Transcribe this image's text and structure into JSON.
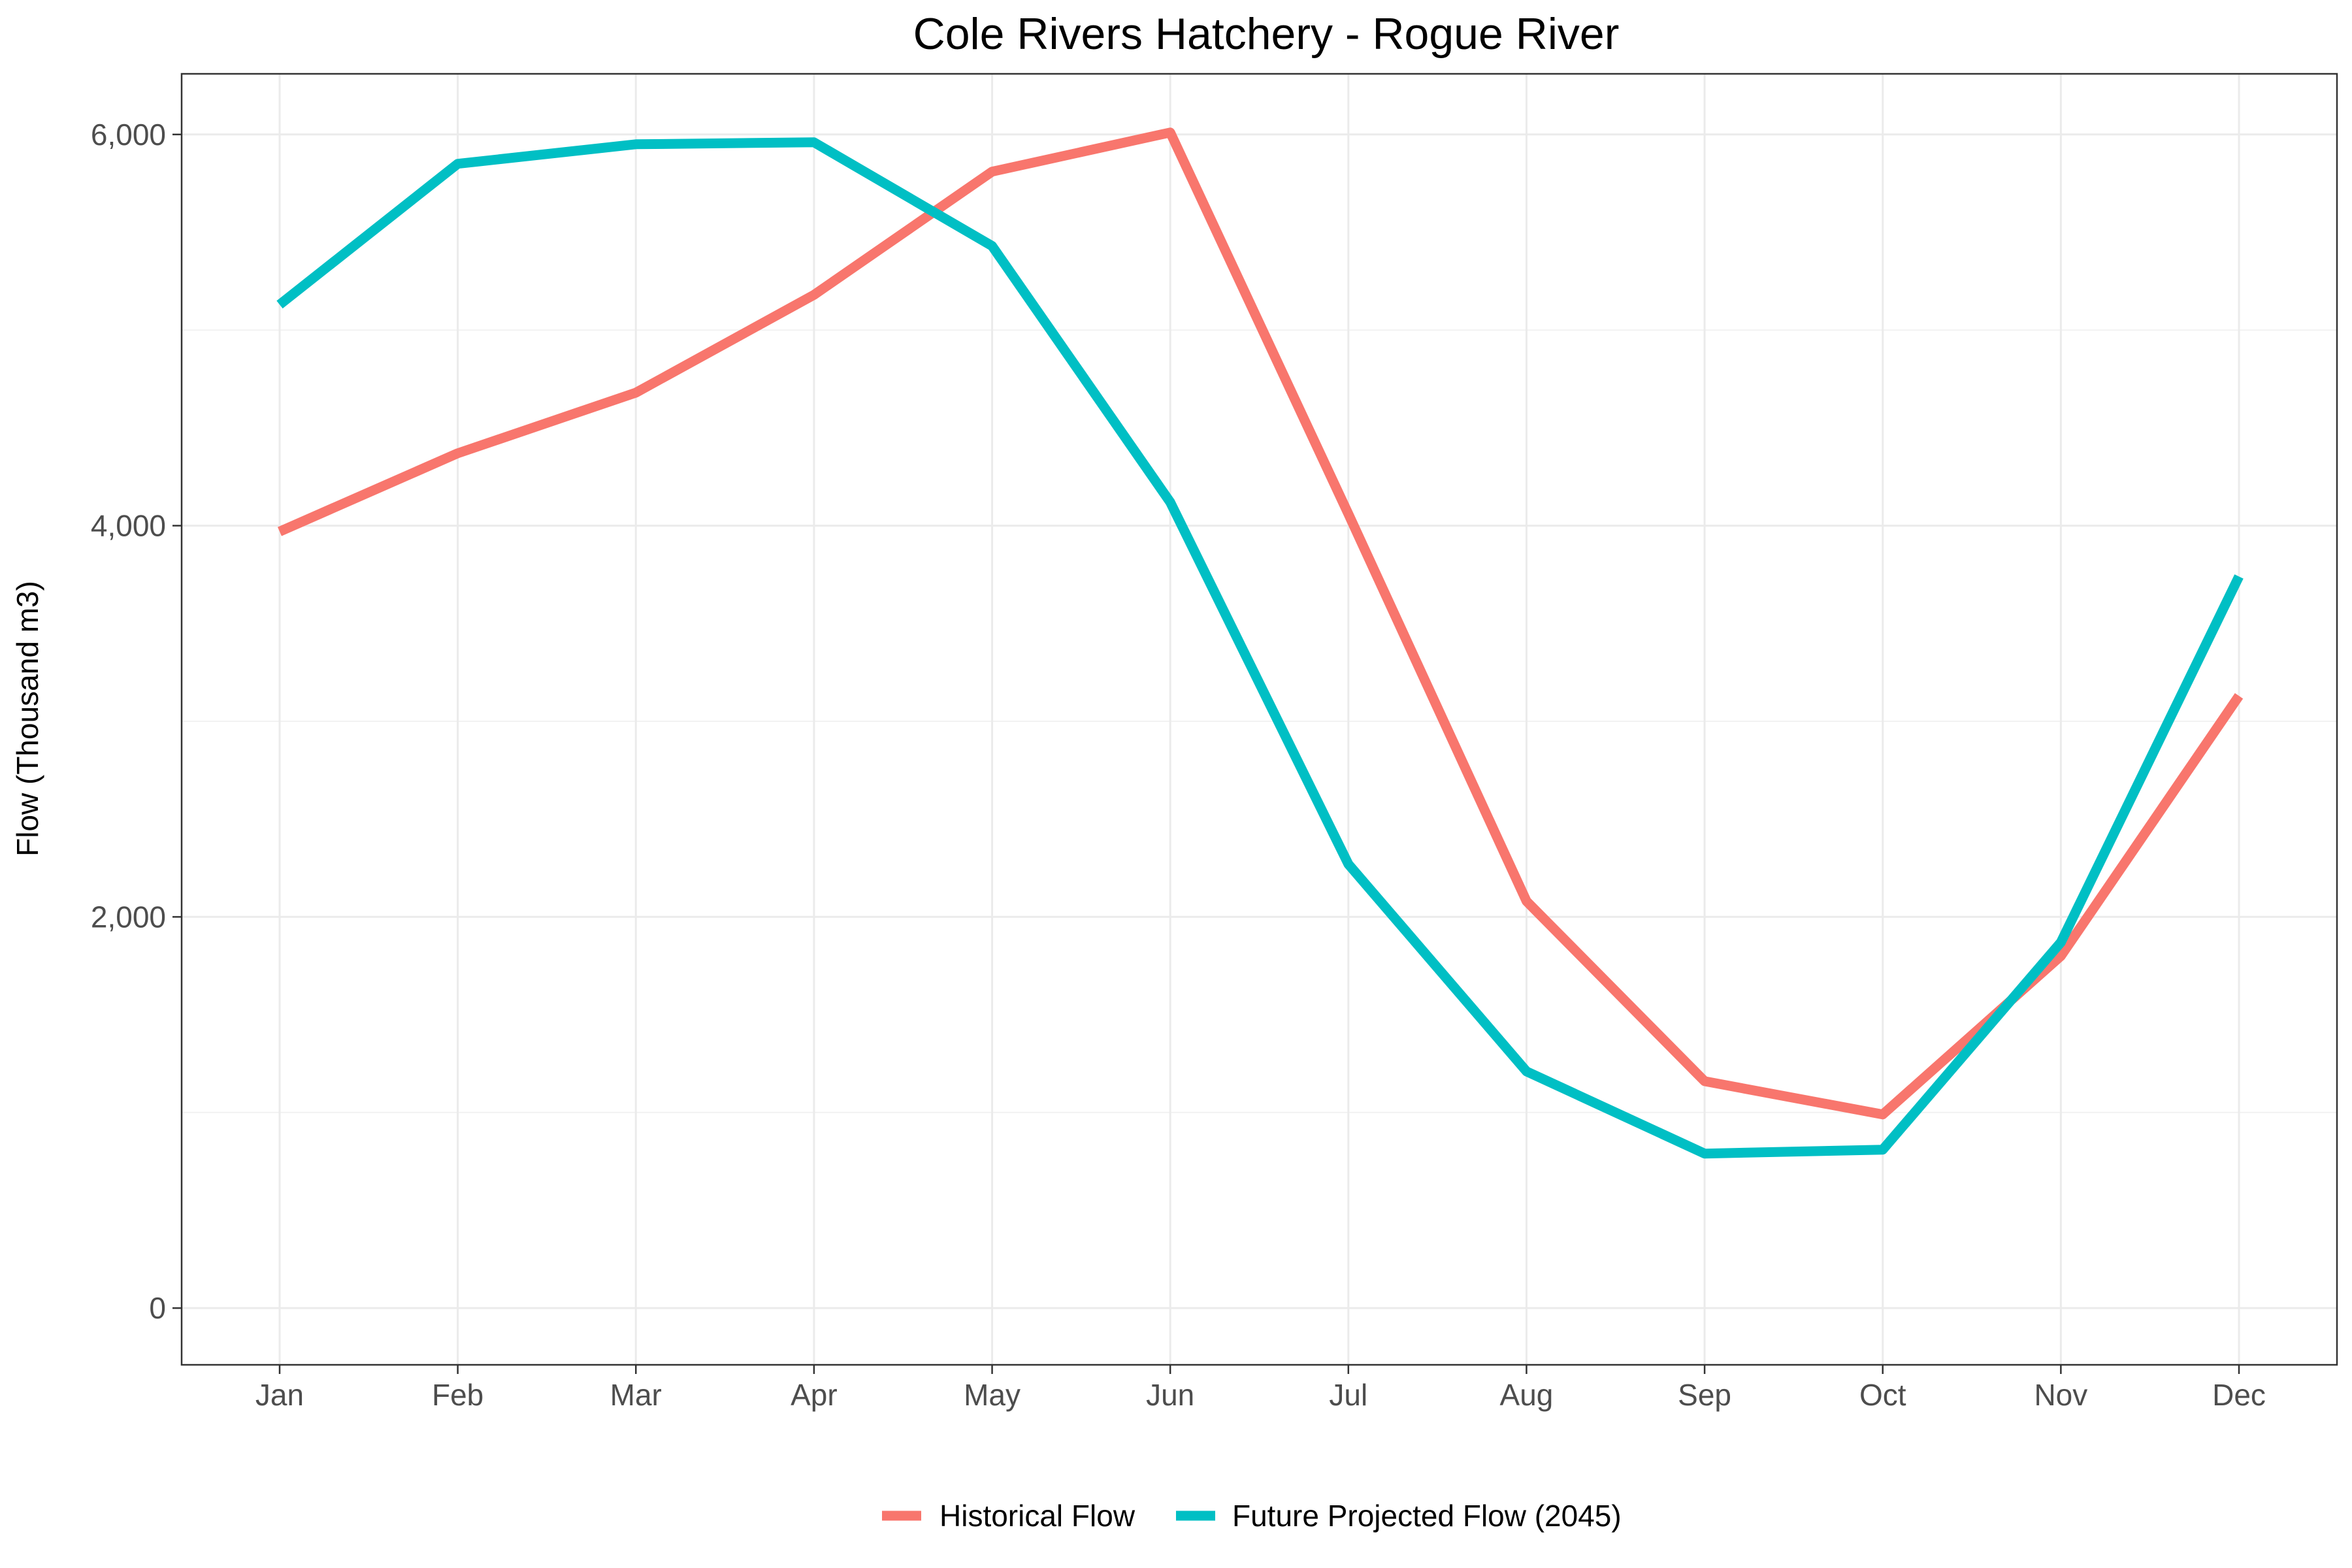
{
  "chart_data": {
    "type": "line",
    "title": "Cole Rivers Hatchery - Rogue River",
    "xlabel": "",
    "ylabel": "Flow (Thousand m3)",
    "categories": [
      "Jan",
      "Feb",
      "Mar",
      "Apr",
      "May",
      "Jun",
      "Jul",
      "Aug",
      "Sep",
      "Oct",
      "Nov",
      "Dec"
    ],
    "ylim": [
      -290,
      6310
    ],
    "yticks": [
      0,
      2000,
      4000,
      6000
    ],
    "ytick_labels": [
      "0",
      "2,000",
      "4,000",
      "6,000"
    ],
    "grid": true,
    "legend_position": "bottom",
    "series": [
      {
        "name": "Historical Flow",
        "color": "#F8766D",
        "values": [
          3970,
          4370,
          4680,
          5180,
          5810,
          6010,
          4060,
          2080,
          1160,
          990,
          1800,
          3130
        ]
      },
      {
        "name": "Future Projected Flow (2045)",
        "color": "#00BFC4",
        "values": [
          5130,
          5850,
          5950,
          5960,
          5430,
          4120,
          2270,
          1210,
          790,
          810,
          1870,
          3740
        ]
      }
    ]
  }
}
